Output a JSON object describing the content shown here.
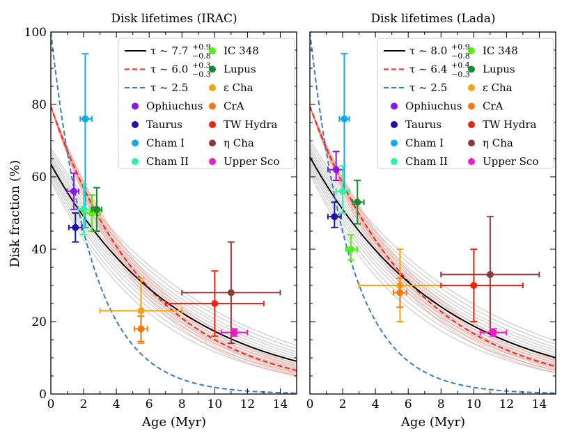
{
  "chart_data": [
    {
      "type": "scatter",
      "title": "Disk lifetimes (IRAC)",
      "xlabel": "Age (Myr)",
      "ylabel": "Disk fraction (%)",
      "xlim": [
        0,
        15
      ],
      "ylim": [
        0,
        100
      ],
      "xticks": [
        0,
        2,
        4,
        6,
        8,
        10,
        12,
        14
      ],
      "yticks": [
        0,
        20,
        40,
        60,
        80,
        100
      ],
      "curves": [
        {
          "name": "fit",
          "legend_main": "τ ~ 7.7",
          "legend_sup": "+0.9",
          "legend_sub": "−0.8",
          "A": 63.5,
          "tau": 7.7,
          "color": "#000000",
          "dash": "solid"
        },
        {
          "name": "fit-dashed",
          "legend_main": "τ ~ 6.0",
          "legend_sup": "+0.3",
          "legend_sub": "−0.3",
          "A": 79.5,
          "tau": 6.0,
          "color": "#e8261e",
          "dash": "dashed"
        },
        {
          "name": "fast",
          "legend_main": "τ ~ 2.5",
          "legend_sup": "",
          "legend_sub": "",
          "A": 100,
          "tau": 2.5,
          "color": "#3a7bbf",
          "dash": "dashed"
        }
      ],
      "series": [
        {
          "name": "Ophiuchus",
          "color": "#8a16ec",
          "x": 1.4,
          "y": 56,
          "xerr": [
            0.4,
            0.3
          ],
          "yerr": [
            5,
            5
          ]
        },
        {
          "name": "Taurus",
          "color": "#1c14a8",
          "x": 1.5,
          "y": 46,
          "xerr": [
            0.4,
            0.4
          ],
          "yerr": [
            4,
            4
          ]
        },
        {
          "name": "Cham I",
          "color": "#10a8f0",
          "x": 2.1,
          "y": 76,
          "xerr": [
            0.3,
            0.4
          ],
          "yerr": [
            30,
            18
          ]
        },
        {
          "name": "Cham II",
          "color": "#2ef2a4",
          "x": 2.0,
          "y": 51,
          "xerr": [
            0.3,
            0.4
          ],
          "yerr": [
            7,
            7
          ]
        },
        {
          "name": "IC 348",
          "color": "#4ff20a",
          "x": 2.5,
          "y": 50,
          "xerr": [
            0.5,
            0.5
          ],
          "yerr": [
            5,
            5
          ]
        },
        {
          "name": "Lupus",
          "color": "#178c2c",
          "x": 2.8,
          "y": 51,
          "xerr": [
            0.3,
            0.3
          ],
          "yerr": [
            6,
            6
          ]
        },
        {
          "name": "ε Cha",
          "color": "#f3a315",
          "x": 5.5,
          "y": 23,
          "xerr": [
            2.5,
            2.5
          ],
          "yerr": [
            9,
            9
          ]
        },
        {
          "name": "CrA",
          "color": "#f47a13",
          "x": 5.5,
          "y": 18,
          "xerr": [
            0.4,
            0.4
          ],
          "yerr": [
            3.5,
            3.5
          ]
        },
        {
          "name": "TW Hydra",
          "color": "#f2220e",
          "x": 10.0,
          "y": 25,
          "xerr": [
            3,
            3
          ],
          "yerr": [
            9,
            9
          ]
        },
        {
          "name": "η Cha",
          "color": "#8b3b3b",
          "x": 11.0,
          "y": 28,
          "xerr": [
            3,
            3
          ],
          "yerr": [
            14,
            14
          ]
        },
        {
          "name": "Upper Sco",
          "color": "#ee1ac6",
          "x": 11.2,
          "y": 17,
          "xerr": [
            0.8,
            0.8
          ],
          "yerr": [
            1,
            1
          ]
        }
      ]
    },
    {
      "type": "scatter",
      "title": "Disk lifetimes (Lada)",
      "xlabel": "Age (Myr)",
      "ylabel": "",
      "xlim": [
        0,
        15
      ],
      "ylim": [
        0,
        100
      ],
      "xticks": [
        0,
        2,
        4,
        6,
        8,
        10,
        12,
        14
      ],
      "yticks": [
        0,
        20,
        40,
        60,
        80,
        100
      ],
      "curves": [
        {
          "name": "fit",
          "legend_main": "τ ~ 8.0",
          "legend_sup": "+0.9",
          "legend_sub": "−0.8",
          "A": 65.5,
          "tau": 8.0,
          "color": "#000000",
          "dash": "solid"
        },
        {
          "name": "fit-dashed",
          "legend_main": "τ ~ 6.4",
          "legend_sup": "+0.4",
          "legend_sub": "−0.3",
          "A": 79.5,
          "tau": 6.4,
          "color": "#e8261e",
          "dash": "dashed"
        },
        {
          "name": "fast",
          "legend_main": "τ ~ 2.5",
          "legend_sup": "",
          "legend_sub": "",
          "A": 100,
          "tau": 2.5,
          "color": "#3a7bbf",
          "dash": "dashed"
        }
      ],
      "series": [
        {
          "name": "Ophiuchus",
          "color": "#8a16ec",
          "x": 1.6,
          "y": 62,
          "xerr": [
            0.5,
            0.5
          ],
          "yerr": [
            3,
            5
          ]
        },
        {
          "name": "Taurus",
          "color": "#1c14a8",
          "x": 1.5,
          "y": 49,
          "xerr": [
            0.4,
            0.4
          ],
          "yerr": [
            3,
            4
          ]
        },
        {
          "name": "Cham I",
          "color": "#10a8f0",
          "x": 2.1,
          "y": 76,
          "xerr": [
            0.3,
            0.3
          ],
          "yerr": [
            20,
            18
          ]
        },
        {
          "name": "Cham II",
          "color": "#2ef2a4",
          "x": 2.0,
          "y": 56,
          "xerr": [
            0.4,
            0.4
          ],
          "yerr": [
            6,
            7
          ]
        },
        {
          "name": "IC 348",
          "color": "#4ff20a",
          "x": 2.5,
          "y": 40,
          "xerr": [
            0.3,
            0.4
          ],
          "yerr": [
            3,
            4
          ]
        },
        {
          "name": "Lupus",
          "color": "#178c2c",
          "x": 2.9,
          "y": 53,
          "xerr": [
            0.3,
            0.4
          ],
          "yerr": [
            6,
            6
          ]
        },
        {
          "name": "ε Cha",
          "color": "#f3a315",
          "x": 5.5,
          "y": 30,
          "xerr": [
            2.5,
            2.5
          ],
          "yerr": [
            10,
            10
          ]
        },
        {
          "name": "CrA",
          "color": "#f47a13",
          "x": 5.5,
          "y": 28,
          "xerr": [
            0.4,
            0.4
          ],
          "yerr": [
            4,
            4
          ]
        },
        {
          "name": "TW Hydra",
          "color": "#f2220e",
          "x": 10.0,
          "y": 30,
          "xerr": [
            2,
            3
          ],
          "yerr": [
            10,
            10
          ]
        },
        {
          "name": "η Cha",
          "color": "#8b3b3b",
          "x": 11.0,
          "y": 33,
          "xerr": [
            3,
            3
          ],
          "yerr": [
            16,
            16
          ]
        },
        {
          "name": "Upper Sco",
          "color": "#ee1ac6",
          "x": 11.2,
          "y": 17,
          "xerr": [
            0.8,
            0.8
          ],
          "yerr": [
            1,
            1
          ]
        }
      ]
    }
  ]
}
